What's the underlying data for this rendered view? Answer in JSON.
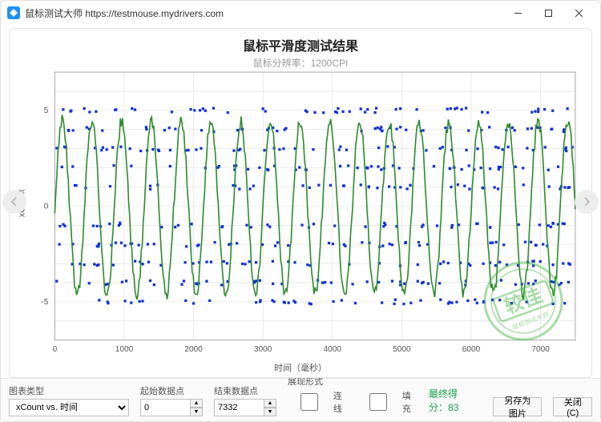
{
  "window": {
    "title": "鼠标测试大师 https://testmouse.mydrivers.com",
    "watermark": ""
  },
  "nav": {
    "prev_icon": "chevron-left",
    "next_icon": "chevron-right"
  },
  "chart": {
    "type": "line+scatter",
    "title": "鼠标平滑度测试结果",
    "subtitle": "鼠标分辨率：1200CPI",
    "xlabel": "时间（毫秒）",
    "ylabel": "xCount",
    "background_color": "#ffffff",
    "grid_color": "#dddddd",
    "frame_color": "#aaaaaa",
    "xlim": [
      0,
      7500
    ],
    "ylim": [
      -7,
      7
    ],
    "xtick_step": 1000,
    "yticks": [
      -5,
      0,
      5
    ],
    "line_series": {
      "color": "#2e8b2e",
      "width": 1.6,
      "n_cycles": 17.5,
      "amplitude": 4.6,
      "y_offset": -0.1,
      "noise": 0.35
    },
    "scatter_series": {
      "color": "#1030d0",
      "marker": "square",
      "size": 3.2,
      "n_points_per_row": 90,
      "y_levels": [
        -5,
        -4,
        -3,
        -2,
        -1,
        1,
        2,
        3,
        4,
        5
      ],
      "density": 0.55
    },
    "stamp": {
      "text": "较佳",
      "sub_text": "鼠标测试大师",
      "color": "#3fb33f"
    }
  },
  "controls": {
    "chart_type_label": "图表类型",
    "chart_type_value": "xCount vs. 时间",
    "start_label": "起始数据点",
    "start_value": "0",
    "end_label": "结束数据点",
    "end_value": "7332",
    "display_label": "展现形式",
    "checkbox_line": "连线",
    "checkbox_fill": "填充",
    "checkbox_line_checked": false,
    "checkbox_fill_checked": false,
    "score_label": "最终得分：",
    "score_value": "83",
    "save_button": "另存为图片",
    "close_button": "关闭(C)"
  }
}
